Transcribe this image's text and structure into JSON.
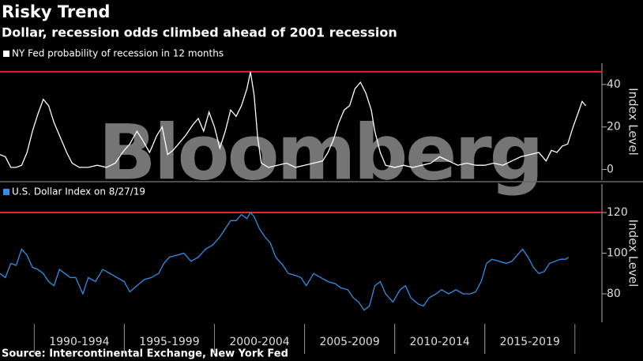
{
  "title": "Risky Trend",
  "subtitle": "Dollar, recession odds climbed ahead of 2001 recession",
  "watermark": "Bloomberg",
  "source": "Source: Intercontinental Exchange, New York Fed",
  "chart_data": [
    {
      "type": "line",
      "ylabel": "Index Level",
      "xlim": [
        1988.1,
        2021.5
      ],
      "ylim": [
        -5,
        50
      ],
      "yticks": [
        0,
        20,
        40
      ],
      "ref_line": {
        "value": 46,
        "color": "#e8232a"
      },
      "x": [
        1988.1,
        1988.4,
        1988.7,
        1989.0,
        1989.3,
        1989.6,
        1989.9,
        1990.2,
        1990.5,
        1990.8,
        1991.1,
        1991.5,
        1991.8,
        1992.1,
        1992.5,
        1993.0,
        1993.5,
        1994.0,
        1994.5,
        1994.9,
        1995.3,
        1995.7,
        1996.0,
        1996.4,
        1996.8,
        1997.1,
        1997.4,
        1997.7,
        1998.0,
        1998.4,
        1998.8,
        1999.1,
        1999.4,
        1999.7,
        2000.0,
        2000.3,
        2000.6,
        2000.9,
        2001.2,
        2001.5,
        2001.8,
        2002.0,
        2002.2,
        2002.4,
        2002.6,
        2003.0,
        2003.5,
        2004.0,
        2004.5,
        2005.0,
        2005.5,
        2006.0,
        2006.3,
        2006.6,
        2006.9,
        2007.2,
        2007.5,
        2007.8,
        2008.1,
        2008.4,
        2008.7,
        2008.9,
        2009.2,
        2009.5,
        2010.0,
        2010.5,
        2011.0,
        2011.5,
        2012.0,
        2012.5,
        2013.0,
        2013.5,
        2014.0,
        2014.5,
        2015.0,
        2015.5,
        2016.0,
        2016.5,
        2017.0,
        2017.5,
        2018.0,
        2018.4,
        2018.7,
        2019.0,
        2019.3,
        2019.6,
        2019.9,
        2020.2,
        2020.4,
        2020.6
      ],
      "series": [
        {
          "name": "NY Fed probability of recession in 12 months",
          "color": "#ffffff",
          "values": [
            7,
            6,
            1,
            1,
            2,
            8,
            18,
            26,
            33,
            30,
            22,
            14,
            8,
            3,
            1,
            1,
            2,
            1,
            3,
            8,
            12,
            18,
            14,
            8,
            16,
            20,
            7,
            9,
            12,
            16,
            21,
            24,
            18,
            27,
            20,
            10,
            18,
            28,
            25,
            30,
            38,
            46,
            35,
            15,
            3,
            1,
            2,
            3,
            1,
            2,
            3,
            4,
            8,
            14,
            22,
            28,
            30,
            38,
            41,
            36,
            28,
            18,
            8,
            2,
            1,
            2,
            1,
            2,
            3,
            6,
            4,
            2,
            3,
            2,
            2,
            3,
            2,
            4,
            6,
            7,
            8,
            4,
            9,
            8,
            11,
            12,
            20,
            27,
            32,
            30
          ]
        }
      ]
    },
    {
      "type": "line",
      "ylabel": "Index Level",
      "xlim": [
        1988.1,
        2021.5
      ],
      "ylim": [
        66,
        134
      ],
      "yticks": [
        80,
        100,
        120
      ],
      "xticks": [
        {
          "value": 1992.5,
          "label": "1990-1994"
        },
        {
          "value": 1997.5,
          "label": "1995-1999"
        },
        {
          "value": 2002.5,
          "label": "2000-2004"
        },
        {
          "value": 2007.5,
          "label": "2005-2009"
        },
        {
          "value": 2012.5,
          "label": "2010-2014"
        },
        {
          "value": 2017.5,
          "label": "2015-2019"
        }
      ],
      "ref_line": {
        "value": 120,
        "color": "#e8232a"
      },
      "x": [
        1988.1,
        1988.4,
        1988.7,
        1989.0,
        1989.3,
        1989.6,
        1989.9,
        1990.2,
        1990.5,
        1990.8,
        1991.1,
        1991.4,
        1991.7,
        1992.0,
        1992.3,
        1992.7,
        1993.0,
        1993.4,
        1993.8,
        1994.2,
        1994.6,
        1995.0,
        1995.3,
        1995.7,
        1996.1,
        1996.5,
        1996.9,
        1997.2,
        1997.5,
        1997.9,
        1998.3,
        1998.7,
        1999.1,
        1999.5,
        1999.9,
        2000.3,
        2000.6,
        2000.9,
        2001.2,
        2001.5,
        2001.8,
        2002.0,
        2002.2,
        2002.5,
        2002.8,
        2003.1,
        2003.4,
        2003.8,
        2004.1,
        2004.5,
        2004.8,
        2005.1,
        2005.5,
        2005.9,
        2006.3,
        2006.7,
        2007.0,
        2007.4,
        2007.7,
        2008.0,
        2008.3,
        2008.6,
        2008.9,
        2009.2,
        2009.5,
        2009.9,
        2010.3,
        2010.6,
        2010.9,
        2011.3,
        2011.6,
        2011.9,
        2012.3,
        2012.6,
        2013.0,
        2013.4,
        2013.8,
        2014.2,
        2014.5,
        2014.8,
        2015.1,
        2015.4,
        2015.8,
        2016.2,
        2016.5,
        2016.9,
        2017.1,
        2017.4,
        2017.7,
        2018.0,
        2018.3,
        2018.6,
        2018.9,
        2019.2,
        2019.5,
        2019.65
      ],
      "series": [
        {
          "name": "U.S. Dollar Index on 8/27/19",
          "color": "#2f8fe8",
          "values": [
            90,
            88,
            95,
            94,
            102,
            99,
            93,
            92,
            90,
            86,
            84,
            92,
            90,
            88,
            88,
            80,
            88,
            86,
            92,
            90,
            88,
            86,
            81,
            84,
            87,
            88,
            90,
            95,
            98,
            99,
            100,
            96,
            98,
            102,
            104,
            108,
            112,
            116,
            116,
            119,
            117,
            120,
            118,
            112,
            108,
            105,
            98,
            94,
            90,
            89,
            88,
            84,
            90,
            88,
            86,
            85,
            83,
            82,
            78,
            76,
            72,
            74,
            84,
            86,
            80,
            76,
            82,
            84,
            78,
            75,
            74,
            78,
            80,
            82,
            80,
            82,
            80,
            80,
            81,
            86,
            95,
            97,
            96,
            95,
            96,
            100,
            102,
            98,
            93,
            90,
            91,
            95,
            96,
            97,
            97,
            98
          ]
        }
      ]
    }
  ]
}
